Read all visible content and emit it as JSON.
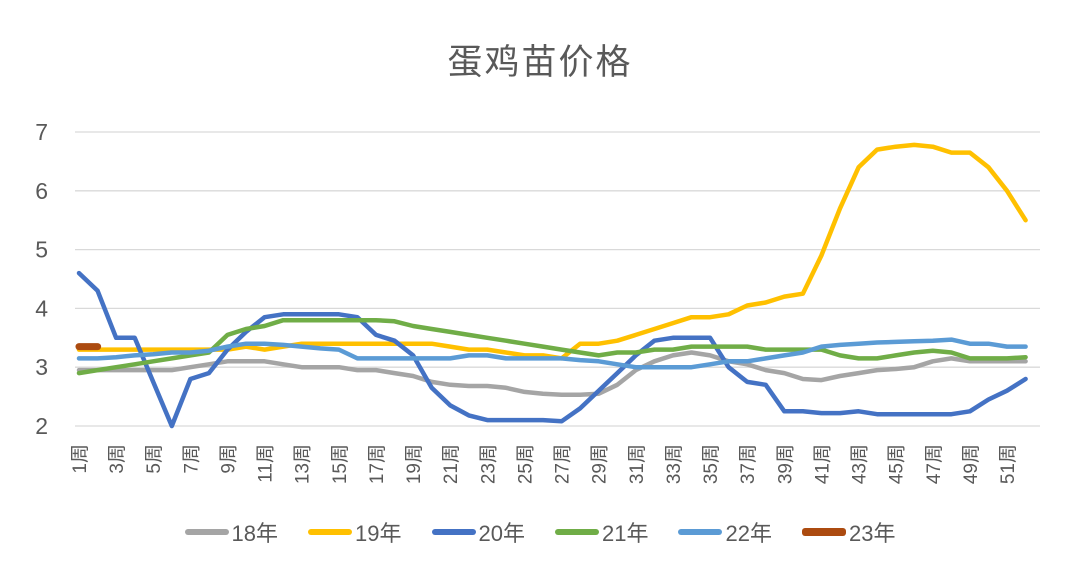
{
  "title": "蛋鸡苗价格",
  "axis": {
    "y_tick_labels": [
      "7",
      "6",
      "5",
      "4",
      "3",
      "2"
    ],
    "x_tick_labels": [
      "1周",
      "3周",
      "5周",
      "7周",
      "9周",
      "11周",
      "13周",
      "15周",
      "17周",
      "19周",
      "21周",
      "23周",
      "25周",
      "27周",
      "29周",
      "31周",
      "33周",
      "35周",
      "37周",
      "39周",
      "41周",
      "43周",
      "45周",
      "47周",
      "49周",
      "51周"
    ]
  },
  "colors": {
    "grid": "#D9D9D9",
    "text": "#595959",
    "series_18": "#A5A5A5",
    "series_19": "#FFC000",
    "series_20": "#4472C4",
    "series_21": "#70AD47",
    "series_22": "#5B9BD5",
    "series_23": "#AC4B10"
  },
  "chart_data": {
    "type": "line",
    "title": "蛋鸡苗价格",
    "xlabel": "",
    "ylabel": "",
    "ylim": [
      2,
      7
    ],
    "y_ticks": [
      2,
      3,
      4,
      5,
      6,
      7
    ],
    "weeks": 52,
    "x_tick_step": 2,
    "x_unit_suffix": "周",
    "grid": true,
    "legend_position": "bottom",
    "series": [
      {
        "name": "18年",
        "color": "#A5A5A5",
        "width": 4.5,
        "values": [
          2.95,
          2.95,
          2.95,
          2.95,
          2.95,
          2.95,
          3.0,
          3.05,
          3.1,
          3.1,
          3.1,
          3.05,
          3.0,
          3.0,
          3.0,
          2.95,
          2.95,
          2.9,
          2.85,
          2.75,
          2.7,
          2.68,
          2.68,
          2.65,
          2.58,
          2.55,
          2.53,
          2.53,
          2.55,
          2.7,
          2.95,
          3.1,
          3.2,
          3.25,
          3.2,
          3.1,
          3.05,
          2.95,
          2.9,
          2.8,
          2.78,
          2.85,
          2.9,
          2.95,
          2.97,
          3.0,
          3.1,
          3.15,
          3.1,
          3.1,
          3.1,
          3.1
        ]
      },
      {
        "name": "19年",
        "color": "#FFC000",
        "width": 4.5,
        "values": [
          3.3,
          3.3,
          3.3,
          3.3,
          3.3,
          3.3,
          3.3,
          3.3,
          3.3,
          3.35,
          3.3,
          3.35,
          3.4,
          3.4,
          3.4,
          3.4,
          3.4,
          3.4,
          3.4,
          3.4,
          3.35,
          3.3,
          3.3,
          3.25,
          3.2,
          3.2,
          3.15,
          3.4,
          3.4,
          3.45,
          3.55,
          3.65,
          3.75,
          3.85,
          3.85,
          3.9,
          4.05,
          4.1,
          4.2,
          4.25,
          4.9,
          5.7,
          6.4,
          6.7,
          6.75,
          6.78,
          6.75,
          6.65,
          6.65,
          6.4,
          6.0,
          5.5
        ]
      },
      {
        "name": "20年",
        "color": "#4472C4",
        "width": 4.5,
        "values": [
          4.6,
          4.3,
          3.5,
          3.5,
          2.75,
          2.0,
          2.8,
          2.9,
          3.3,
          3.6,
          3.85,
          3.9,
          3.9,
          3.9,
          3.9,
          3.85,
          3.55,
          3.45,
          3.2,
          2.65,
          2.35,
          2.18,
          2.1,
          2.1,
          2.1,
          2.1,
          2.08,
          2.3,
          2.6,
          2.9,
          3.2,
          3.45,
          3.5,
          3.5,
          3.5,
          3.0,
          2.75,
          2.7,
          2.25,
          2.25,
          2.22,
          2.22,
          2.25,
          2.2,
          2.2,
          2.2,
          2.2,
          2.2,
          2.25,
          2.45,
          2.6,
          2.8
        ]
      },
      {
        "name": "21年",
        "color": "#70AD47",
        "width": 4.5,
        "values": [
          2.9,
          2.95,
          3.0,
          3.05,
          3.1,
          3.15,
          3.2,
          3.25,
          3.55,
          3.65,
          3.7,
          3.8,
          3.8,
          3.8,
          3.8,
          3.8,
          3.8,
          3.78,
          3.7,
          3.65,
          3.6,
          3.55,
          3.5,
          3.45,
          3.4,
          3.35,
          3.3,
          3.25,
          3.2,
          3.25,
          3.25,
          3.3,
          3.3,
          3.35,
          3.35,
          3.35,
          3.35,
          3.3,
          3.3,
          3.3,
          3.3,
          3.2,
          3.15,
          3.15,
          3.2,
          3.25,
          3.28,
          3.25,
          3.15,
          3.15,
          3.15,
          3.17
        ]
      },
      {
        "name": "22年",
        "color": "#5B9BD5",
        "width": 4.5,
        "values": [
          3.15,
          3.15,
          3.17,
          3.2,
          3.22,
          3.25,
          3.25,
          3.28,
          3.35,
          3.4,
          3.4,
          3.38,
          3.35,
          3.32,
          3.3,
          3.15,
          3.15,
          3.15,
          3.15,
          3.15,
          3.15,
          3.2,
          3.2,
          3.15,
          3.15,
          3.15,
          3.15,
          3.12,
          3.1,
          3.05,
          3.0,
          3.0,
          3.0,
          3.0,
          3.05,
          3.1,
          3.1,
          3.15,
          3.2,
          3.25,
          3.35,
          3.38,
          3.4,
          3.42,
          3.43,
          3.44,
          3.45,
          3.47,
          3.4,
          3.4,
          3.35,
          3.35
        ]
      },
      {
        "name": "23年",
        "color": "#AC4B10",
        "width": 7,
        "values": [
          3.35,
          3.35
        ]
      }
    ]
  }
}
